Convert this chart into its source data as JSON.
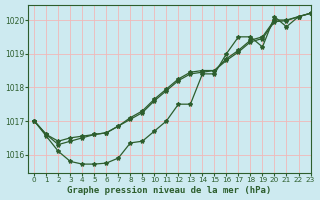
{
  "xlabel": "Graphe pression niveau de la mer (hPa)",
  "xlim": [
    -0.5,
    23
  ],
  "ylim": [
    1015.45,
    1020.45
  ],
  "yticks": [
    1016,
    1017,
    1018,
    1019,
    1020
  ],
  "xticks": [
    0,
    1,
    2,
    3,
    4,
    5,
    6,
    7,
    8,
    9,
    10,
    11,
    12,
    13,
    14,
    15,
    16,
    17,
    18,
    19,
    20,
    21,
    22,
    23
  ],
  "bg_color": "#cdeaf0",
  "grid_color": "#f0b8b8",
  "line_color": "#2d5e2d",
  "series1_x": [
    0,
    1,
    2,
    3,
    4,
    5,
    6,
    7,
    8,
    9,
    10,
    11,
    12,
    13,
    14,
    15,
    16,
    17,
    18,
    19,
    20,
    21,
    22,
    23
  ],
  "series1_y": [
    1017.0,
    1016.6,
    1016.4,
    1016.5,
    1016.55,
    1016.6,
    1016.65,
    1016.85,
    1017.1,
    1017.3,
    1017.65,
    1017.95,
    1018.25,
    1018.45,
    1018.5,
    1018.5,
    1018.85,
    1019.1,
    1019.4,
    1019.5,
    1020.0,
    1020.0,
    1020.1,
    1020.2
  ],
  "series2_x": [
    0,
    1,
    2,
    3,
    4,
    5,
    6,
    7,
    8,
    9,
    10,
    11,
    12,
    13,
    14,
    15,
    16,
    17,
    18,
    19,
    20,
    21,
    22,
    23
  ],
  "series2_y": [
    1017.0,
    1016.55,
    1016.1,
    1015.8,
    1015.72,
    1015.72,
    1015.75,
    1015.9,
    1016.35,
    1016.4,
    1016.7,
    1017.0,
    1017.5,
    1017.5,
    1018.4,
    1018.4,
    1019.0,
    1019.5,
    1019.5,
    1019.2,
    1020.1,
    1019.8,
    1020.1,
    1020.2
  ],
  "series3_x": [
    0,
    1,
    2,
    3,
    4,
    5,
    6,
    7,
    8,
    9,
    10,
    11,
    12,
    13,
    14,
    15,
    16,
    17,
    18,
    19,
    20,
    21,
    22,
    23
  ],
  "series3_y": [
    1017.0,
    1016.6,
    1016.3,
    1016.4,
    1016.5,
    1016.6,
    1016.65,
    1016.85,
    1017.05,
    1017.25,
    1017.6,
    1017.9,
    1018.2,
    1018.4,
    1018.45,
    1018.5,
    1018.8,
    1019.05,
    1019.35,
    1019.45,
    1019.95,
    1019.98,
    1020.1,
    1020.2
  ]
}
